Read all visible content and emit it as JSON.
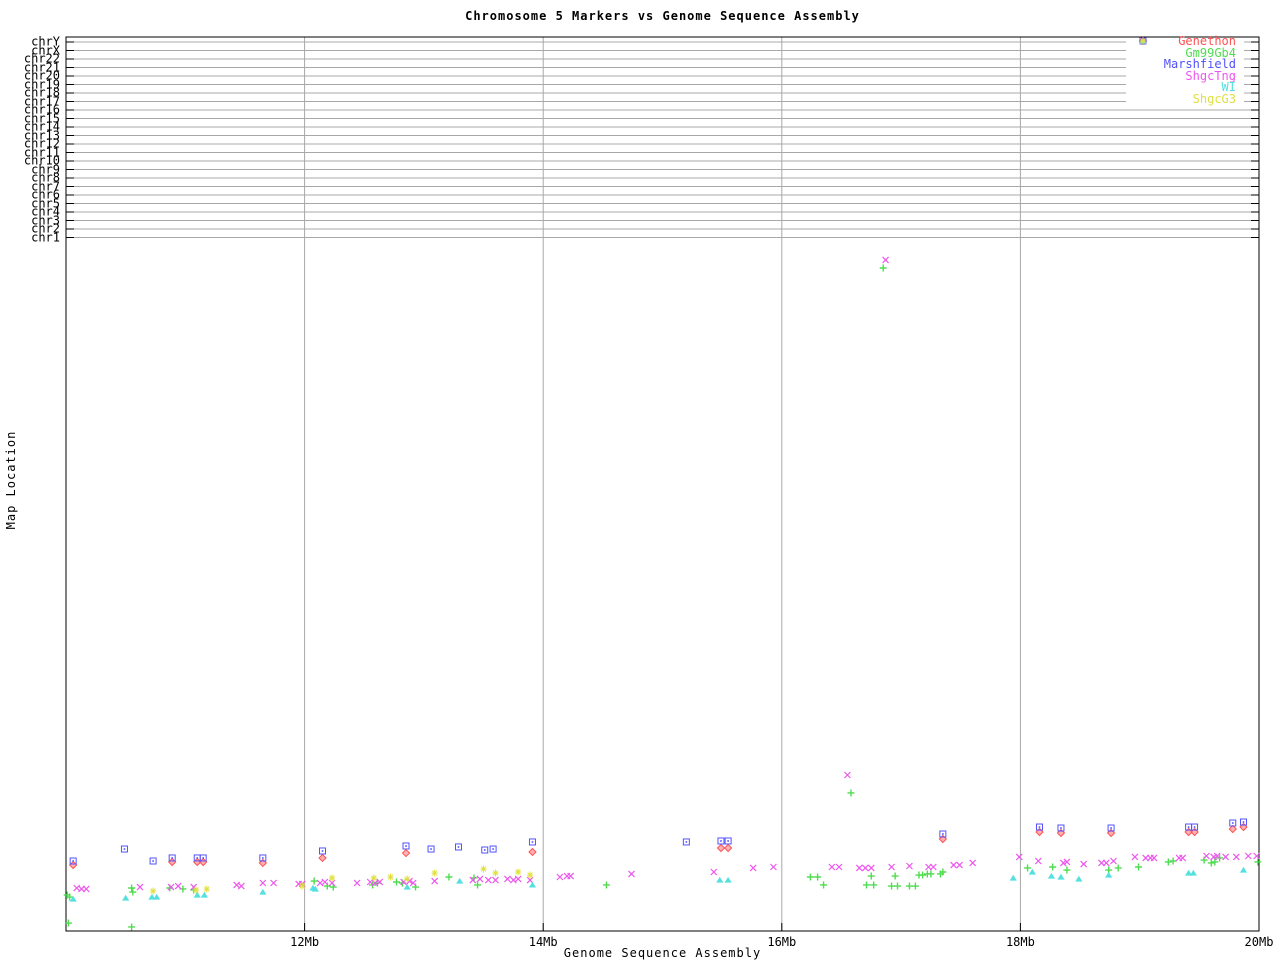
{
  "page": {
    "background": "#ffffff",
    "grid_color": "#a8a8a8",
    "axis_color": "#000000"
  },
  "chart_data": {
    "type": "scatter",
    "title": "Chromosome 5 Markers vs Genome Sequence Assembly",
    "xlabel": "Genome Sequence Assembly",
    "ylabel": "Map Location",
    "x_units": "Mb",
    "xlim_mb": [
      10,
      20
    ],
    "y_units": "fraction of plot height above x-axis (no numeric y scale shown)",
    "grid": true,
    "legend_position": "top-right-inside",
    "xticks": [
      {
        "label": "12Mb",
        "mb": 12,
        "gridline": true
      },
      {
        "label": "14Mb",
        "mb": 14,
        "gridline": true
      },
      {
        "label": "16Mb",
        "mb": 16,
        "gridline": true
      },
      {
        "label": "18Mb",
        "mb": 18,
        "gridline": true
      },
      {
        "label": "20Mb",
        "mb": 20,
        "gridline": false
      }
    ],
    "yticks": [
      "chrY",
      "chrX",
      "chr22",
      "chr21",
      "chr20",
      "chr19",
      "chr18",
      "chr17",
      "chr16",
      "chr15",
      "chr14",
      "chr13",
      "chr12",
      "chr11",
      "chr10",
      "chr9",
      "chr8",
      "chr7",
      "chr6",
      "chr5",
      "chr4",
      "chr3",
      "chr2",
      "chr1"
    ],
    "series": [
      {
        "name": "Genethon",
        "marker": "diamond",
        "color": "#ff5252",
        "points": [
          [
            10.06,
            0.0738
          ],
          [
            10.89,
            0.0772
          ],
          [
            11.1,
            0.0772
          ],
          [
            11.15,
            0.0772
          ],
          [
            11.65,
            0.0761
          ],
          [
            12.15,
            0.0817
          ],
          [
            12.85,
            0.0872
          ],
          [
            13.91,
            0.0884
          ],
          [
            15.49,
            0.0928
          ],
          [
            15.55,
            0.0928
          ],
          [
            17.35,
            0.1029
          ],
          [
            18.16,
            0.1107
          ],
          [
            18.34,
            0.1096
          ],
          [
            18.76,
            0.1096
          ],
          [
            19.41,
            0.1107
          ],
          [
            19.46,
            0.1107
          ],
          [
            19.78,
            0.1141
          ],
          [
            19.87,
            0.1163
          ]
        ]
      },
      {
        "name": "Gm99Gb4",
        "marker": "plus",
        "color": "#4fdd4f",
        "points": [
          [
            10.01,
            0.0403
          ],
          [
            10.03,
            0.038
          ],
          [
            10.02,
            0.0089
          ],
          [
            10.55,
            0.0045
          ],
          [
            10.55,
            0.0481
          ],
          [
            10.56,
            0.0436
          ],
          [
            10.87,
            0.0481
          ],
          [
            10.98,
            0.047
          ],
          [
            11.07,
            0.0459
          ],
          [
            12.08,
            0.0559
          ],
          [
            12.19,
            0.0503
          ],
          [
            12.24,
            0.0492
          ],
          [
            12.57,
            0.0515
          ],
          [
            12.61,
            0.0537
          ],
          [
            12.77,
            0.0548
          ],
          [
            12.82,
            0.0537
          ],
          [
            12.93,
            0.0492
          ],
          [
            13.21,
            0.0604
          ],
          [
            13.42,
            0.0593
          ],
          [
            13.45,
            0.0515
          ],
          [
            14.53,
            0.0515
          ],
          [
            16.24,
            0.0604
          ],
          [
            16.3,
            0.0604
          ],
          [
            16.35,
            0.0515
          ],
          [
            16.71,
            0.0515
          ],
          [
            16.75,
            0.0615
          ],
          [
            16.77,
            0.0515
          ],
          [
            16.92,
            0.0503
          ],
          [
            16.95,
            0.0615
          ],
          [
            16.97,
            0.0503
          ],
          [
            17.07,
            0.0503
          ],
          [
            17.12,
            0.0503
          ],
          [
            17.15,
            0.0626
          ],
          [
            17.18,
            0.0626
          ],
          [
            17.22,
            0.0638
          ],
          [
            17.25,
            0.0638
          ],
          [
            17.33,
            0.0638
          ],
          [
            17.35,
            0.066
          ],
          [
            18.06,
            0.0705
          ],
          [
            18.27,
            0.0716
          ],
          [
            18.39,
            0.0682
          ],
          [
            18.74,
            0.0682
          ],
          [
            18.82,
            0.0705
          ],
          [
            18.99,
            0.0716
          ],
          [
            19.24,
            0.0772
          ],
          [
            19.28,
            0.0783
          ],
          [
            19.54,
            0.0794
          ],
          [
            19.6,
            0.0761
          ],
          [
            19.63,
            0.0772
          ],
          [
            19.67,
            0.0817
          ],
          [
            19.99,
            0.0772
          ],
          [
            16.58,
            0.1544
          ],
          [
            16.85,
            0.7416
          ]
        ]
      },
      {
        "name": "Marshfield",
        "marker": "square",
        "color": "#5252ff",
        "points": [
          [
            10.06,
            0.0783
          ],
          [
            10.49,
            0.0917
          ],
          [
            10.73,
            0.0783
          ],
          [
            10.89,
            0.0817
          ],
          [
            11.1,
            0.0817
          ],
          [
            11.15,
            0.0817
          ],
          [
            11.65,
            0.0817
          ],
          [
            12.15,
            0.0895
          ],
          [
            12.85,
            0.0951
          ],
          [
            13.06,
            0.0917
          ],
          [
            13.29,
            0.094
          ],
          [
            13.51,
            0.0906
          ],
          [
            13.58,
            0.0917
          ],
          [
            13.91,
            0.0996
          ],
          [
            15.2,
            0.0996
          ],
          [
            15.49,
            0.1007
          ],
          [
            15.55,
            0.1007
          ],
          [
            17.35,
            0.1085
          ],
          [
            18.16,
            0.1163
          ],
          [
            18.34,
            0.1152
          ],
          [
            18.76,
            0.1152
          ],
          [
            19.41,
            0.1163
          ],
          [
            19.46,
            0.1163
          ],
          [
            19.78,
            0.1208
          ],
          [
            19.87,
            0.1219
          ]
        ]
      },
      {
        "name": "ShgcTng",
        "marker": "cross",
        "color": "#ee55ee",
        "points": [
          [
            10.09,
            0.0481
          ],
          [
            10.13,
            0.047
          ],
          [
            10.17,
            0.047
          ],
          [
            10.62,
            0.0492
          ],
          [
            10.88,
            0.0492
          ],
          [
            10.94,
            0.0503
          ],
          [
            11.07,
            0.0492
          ],
          [
            11.43,
            0.0515
          ],
          [
            11.47,
            0.0503
          ],
          [
            11.65,
            0.0537
          ],
          [
            11.74,
            0.0537
          ],
          [
            11.95,
            0.0526
          ],
          [
            11.98,
            0.0526
          ],
          [
            12.13,
            0.0537
          ],
          [
            12.17,
            0.0548
          ],
          [
            12.23,
            0.0537
          ],
          [
            12.44,
            0.0537
          ],
          [
            12.55,
            0.0548
          ],
          [
            12.59,
            0.0537
          ],
          [
            12.63,
            0.0548
          ],
          [
            12.83,
            0.0548
          ],
          [
            12.88,
            0.0559
          ],
          [
            12.91,
            0.0537
          ],
          [
            13.09,
            0.0559
          ],
          [
            13.41,
            0.057
          ],
          [
            13.47,
            0.0582
          ],
          [
            13.54,
            0.057
          ],
          [
            13.6,
            0.057
          ],
          [
            13.7,
            0.0582
          ],
          [
            13.75,
            0.057
          ],
          [
            13.79,
            0.0582
          ],
          [
            13.89,
            0.057
          ],
          [
            14.14,
            0.0604
          ],
          [
            14.2,
            0.0615
          ],
          [
            14.23,
            0.0615
          ],
          [
            14.74,
            0.0638
          ],
          [
            15.43,
            0.066
          ],
          [
            15.76,
            0.0705
          ],
          [
            15.93,
            0.0716
          ],
          [
            16.42,
            0.0716
          ],
          [
            16.48,
            0.0716
          ],
          [
            16.65,
            0.0705
          ],
          [
            16.7,
            0.0705
          ],
          [
            16.75,
            0.0705
          ],
          [
            16.92,
            0.0716
          ],
          [
            17.07,
            0.0727
          ],
          [
            17.23,
            0.0716
          ],
          [
            17.27,
            0.0716
          ],
          [
            17.44,
            0.0738
          ],
          [
            17.49,
            0.0738
          ],
          [
            17.6,
            0.0761
          ],
          [
            17.99,
            0.0828
          ],
          [
            18.15,
            0.0783
          ],
          [
            18.36,
            0.0761
          ],
          [
            18.39,
            0.0772
          ],
          [
            18.53,
            0.0749
          ],
          [
            18.68,
            0.0761
          ],
          [
            18.72,
            0.0761
          ],
          [
            18.78,
            0.0783
          ],
          [
            18.96,
            0.0828
          ],
          [
            19.05,
            0.0817
          ],
          [
            19.09,
            0.0817
          ],
          [
            19.12,
            0.0817
          ],
          [
            19.33,
            0.0817
          ],
          [
            19.36,
            0.0817
          ],
          [
            19.56,
            0.0839
          ],
          [
            19.62,
            0.0828
          ],
          [
            19.65,
            0.0839
          ],
          [
            19.72,
            0.0828
          ],
          [
            19.81,
            0.0828
          ],
          [
            19.91,
            0.0839
          ],
          [
            19.98,
            0.0839
          ],
          [
            16.55,
            0.1745
          ],
          [
            16.87,
            0.7506
          ]
        ]
      },
      {
        "name": "WI",
        "marker": "triangle",
        "color": "#55e0e0",
        "points": [
          [
            10.06,
            0.0358
          ],
          [
            10.5,
            0.0369
          ],
          [
            10.72,
            0.038
          ],
          [
            10.76,
            0.038
          ],
          [
            11.1,
            0.0403
          ],
          [
            11.16,
            0.0403
          ],
          [
            11.65,
            0.0436
          ],
          [
            12.07,
            0.0481
          ],
          [
            12.09,
            0.047
          ],
          [
            12.86,
            0.0492
          ],
          [
            13.3,
            0.0559
          ],
          [
            13.91,
            0.0515
          ],
          [
            15.48,
            0.057
          ],
          [
            15.55,
            0.057
          ],
          [
            17.94,
            0.0593
          ],
          [
            18.1,
            0.066
          ],
          [
            18.26,
            0.0615
          ],
          [
            18.34,
            0.0604
          ],
          [
            18.49,
            0.0582
          ],
          [
            18.74,
            0.0626
          ],
          [
            19.41,
            0.0649
          ],
          [
            19.45,
            0.0649
          ],
          [
            19.87,
            0.0682
          ]
        ]
      },
      {
        "name": "ShgcG3",
        "marker": "asterisk",
        "color": "#e0e040",
        "points": [
          [
            10.73,
            0.0447
          ],
          [
            11.09,
            0.0459
          ],
          [
            11.18,
            0.047
          ],
          [
            11.98,
            0.0503
          ],
          [
            12.23,
            0.0593
          ],
          [
            12.58,
            0.0593
          ],
          [
            12.72,
            0.0604
          ],
          [
            12.86,
            0.0582
          ],
          [
            13.09,
            0.0649
          ],
          [
            13.5,
            0.0694
          ],
          [
            13.6,
            0.0649
          ],
          [
            13.79,
            0.066
          ],
          [
            13.89,
            0.0626
          ]
        ]
      }
    ]
  }
}
